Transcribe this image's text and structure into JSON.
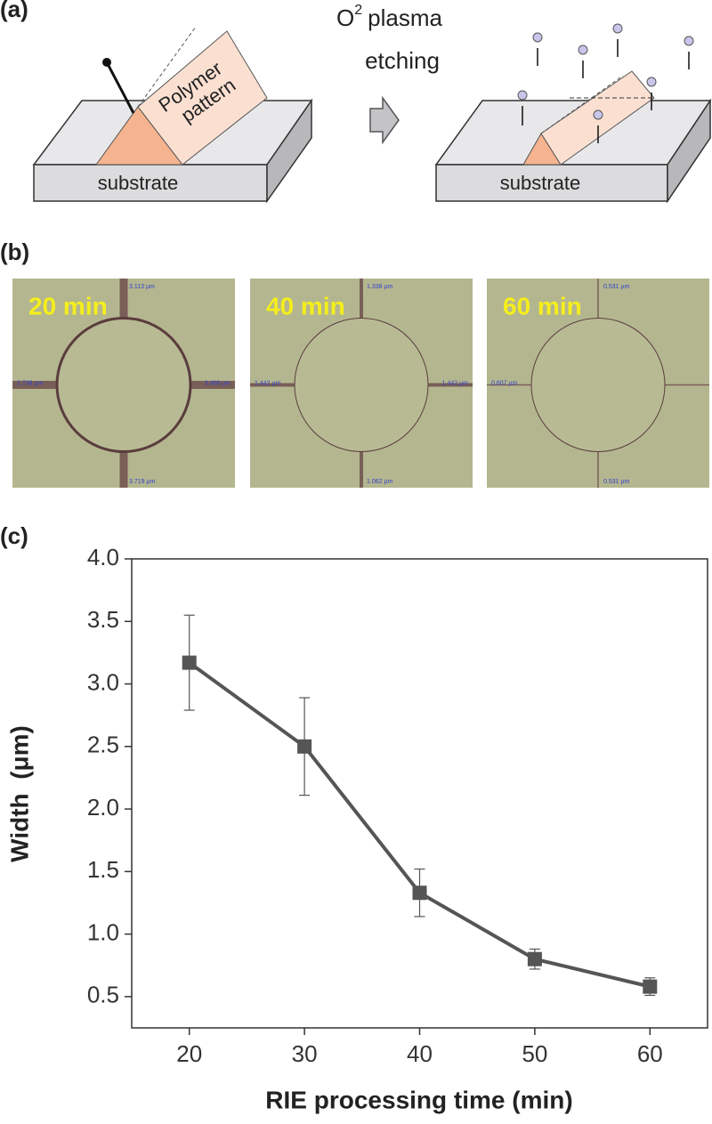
{
  "panel_a": {
    "label": "(a)",
    "polymer_label": [
      "Polymer",
      "pattern"
    ],
    "substrate_labels": [
      "substrate",
      "substrate"
    ],
    "process": {
      "base": "O",
      "superscript": "2",
      "words": [
        "plasma",
        "etching"
      ]
    }
  },
  "panel_b": {
    "label": "(b)",
    "images": [
      {
        "time": "20 min",
        "measurements": [
          "3.113 µm",
          "2.738 µm",
          "3.408 µm",
          "3.719 µm"
        ]
      },
      {
        "time": "40 min",
        "measurements": [
          "1.338 µm",
          "1.442 µm",
          "1.442 µm",
          "1.062 µm"
        ]
      },
      {
        "time": "60 min",
        "measurements": [
          "0.531 µm",
          "0.607 µm",
          "0.531 µm"
        ]
      }
    ]
  },
  "panel_c": {
    "label": "(c)"
  },
  "chart_data": {
    "type": "line",
    "x_label": "RIE processing time (min)",
    "y_label": "Width  (μm)",
    "x": [
      20,
      30,
      40,
      50,
      60
    ],
    "series": [
      {
        "color": "#555555",
        "values": [
          3.17,
          2.5,
          1.33,
          0.8,
          0.58
        ],
        "errors": [
          0.38,
          0.39,
          0.19,
          0.08,
          0.07
        ]
      }
    ],
    "xlim": [
      15,
      65
    ],
    "ylim": [
      0.25,
      4.0
    ],
    "xticks": [
      20,
      30,
      40,
      50,
      60
    ],
    "yticks": [
      {
        "value": 0.5,
        "label": "0.5"
      },
      {
        "value": 1.0,
        "label": "1.0"
      },
      {
        "value": 1.5,
        "label": "1.5"
      },
      {
        "value": 2.0,
        "label": "2.0"
      },
      {
        "value": 2.5,
        "label": "2.5"
      },
      {
        "value": 3.0,
        "label": "3.0"
      },
      {
        "value": 3.5,
        "label": "3.5"
      },
      {
        "value": 4.0,
        "label": "4.0"
      }
    ],
    "grid": false
  }
}
